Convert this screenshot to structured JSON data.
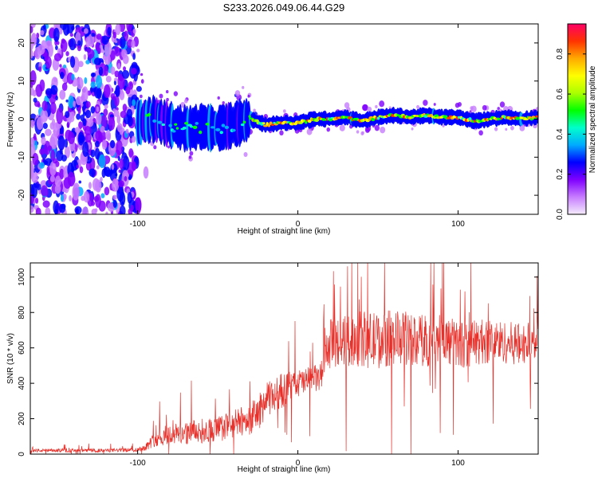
{
  "title": "S233.2026.049.06.44.G29",
  "chart_data": [
    {
      "type": "heatmap",
      "xlabel": "Height of straight line (km)",
      "ylabel": "Frequency (Hz)",
      "xlim": [
        -167,
        150
      ],
      "ylim": [
        -25,
        25
      ],
      "xticks": [
        -100,
        0,
        100
      ],
      "xtick_labels": [
        "-100",
        "0",
        "100"
      ],
      "yticks": [
        -20,
        -10,
        0,
        10,
        20
      ],
      "ytick_labels": [
        "-20",
        "-10",
        "0",
        "10",
        "20"
      ],
      "signal_center_hz": [
        {
          "x": -100,
          "y": -1.0
        },
        {
          "x": -90,
          "y": 0.0
        },
        {
          "x": -80,
          "y": -1.5
        },
        {
          "x": -70,
          "y": -2.5
        },
        {
          "x": -60,
          "y": -2.0
        },
        {
          "x": -50,
          "y": -2.5
        },
        {
          "x": -40,
          "y": -1.5
        },
        {
          "x": -30,
          "y": 0.0
        },
        {
          "x": -20,
          "y": -1.5
        },
        {
          "x": -10,
          "y": -1.0
        },
        {
          "x": 0,
          "y": -1.0
        },
        {
          "x": 10,
          "y": 0.0
        },
        {
          "x": 20,
          "y": 0.0
        },
        {
          "x": 30,
          "y": 0.5
        },
        {
          "x": 40,
          "y": -0.5
        },
        {
          "x": 50,
          "y": 0.5
        },
        {
          "x": 60,
          "y": 1.0
        },
        {
          "x": 70,
          "y": 0.5
        },
        {
          "x": 80,
          "y": 1.0
        },
        {
          "x": 90,
          "y": 0.5
        },
        {
          "x": 100,
          "y": 0.5
        },
        {
          "x": 110,
          "y": -0.5
        },
        {
          "x": 120,
          "y": 0.0
        },
        {
          "x": 130,
          "y": 0.5
        },
        {
          "x": 140,
          "y": 0.0
        },
        {
          "x": 150,
          "y": 0.5
        }
      ],
      "colorbar": {
        "label": "Normalized spectral amplitude",
        "range": [
          0,
          0.95
        ],
        "ticks": [
          0.0,
          0.2,
          0.4,
          0.6,
          0.8
        ],
        "tick_labels": [
          "0.0",
          "0.2",
          "0.4",
          "0.6",
          "0.8"
        ],
        "colors": [
          "#f4ecfb",
          "#c77dff",
          "#8000ff",
          "#0000ff",
          "#00aaff",
          "#00ffcc",
          "#00ff00",
          "#aaff00",
          "#ffff00",
          "#ffaa00",
          "#ff3300",
          "#ff0066"
        ]
      }
    },
    {
      "type": "line",
      "xlabel": "Height of straight line (km)",
      "ylabel": "SNR (10 * v/v)",
      "xlim": [
        -167,
        150
      ],
      "ylim": [
        0,
        1080
      ],
      "xticks": [
        -100,
        0,
        100
      ],
      "xtick_labels": [
        "-100",
        "0",
        "100"
      ],
      "yticks": [
        0,
        200,
        400,
        600,
        800,
        1000
      ],
      "ytick_labels": [
        "0",
        "200",
        "400",
        "600",
        "800",
        "1000"
      ],
      "color": "#e8302a",
      "series": [
        {
          "name": "SNR",
          "x": [
            -167,
            -140,
            -120,
            -100,
            -95,
            -90,
            -80,
            -70,
            -60,
            -50,
            -40,
            -30,
            -25,
            -20,
            -15,
            -10,
            -5,
            0,
            5,
            10,
            15,
            17,
            18,
            20,
            30,
            40,
            50,
            60,
            70,
            80,
            90,
            100,
            110,
            120,
            130,
            140,
            150
          ],
          "y": [
            20,
            20,
            20,
            25,
            40,
            80,
            110,
            120,
            130,
            140,
            170,
            200,
            230,
            300,
            330,
            360,
            380,
            400,
            410,
            420,
            440,
            500,
            580,
            620,
            640,
            650,
            640,
            660,
            650,
            640,
            650,
            620,
            630,
            640,
            630,
            620,
            640
          ],
          "spread": [
            10,
            10,
            10,
            12,
            20,
            40,
            60,
            65,
            70,
            75,
            80,
            90,
            100,
            100,
            100,
            100,
            90,
            80,
            80,
            80,
            90,
            110,
            130,
            140,
            150,
            160,
            160,
            160,
            150,
            150,
            140,
            140,
            130,
            130,
            120,
            120,
            110
          ]
        }
      ]
    }
  ]
}
